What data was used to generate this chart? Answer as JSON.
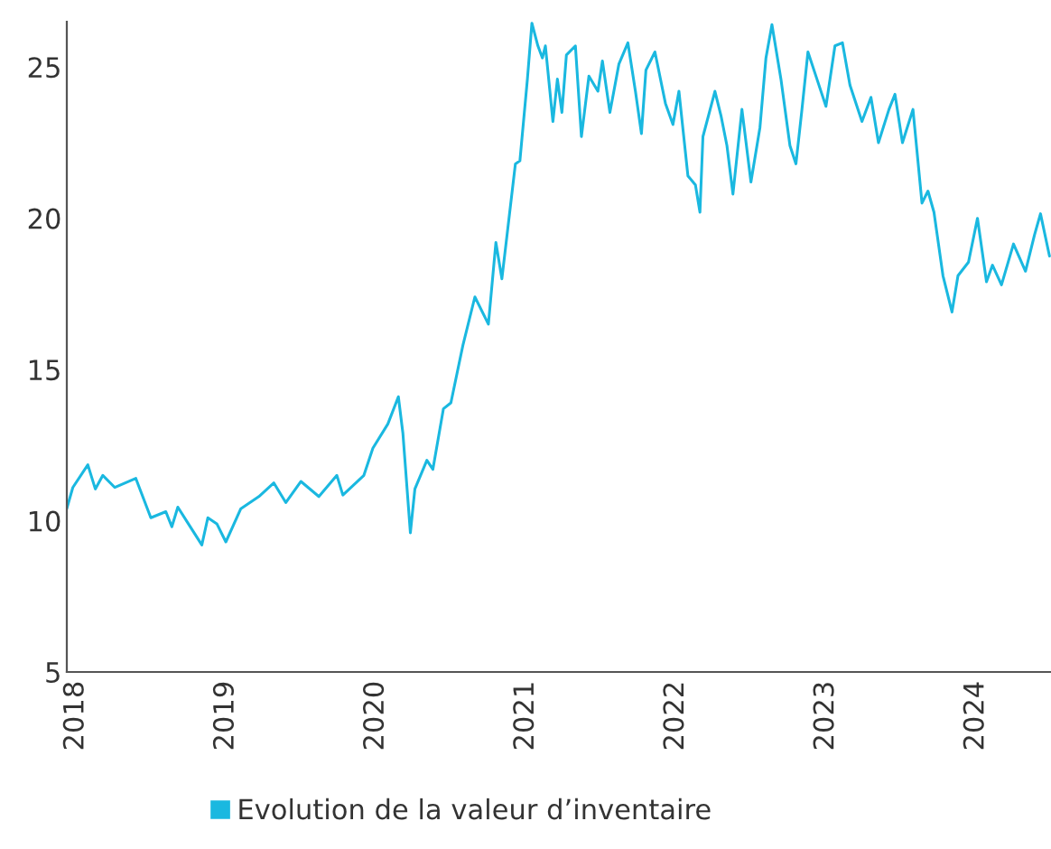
{
  "chart_data": {
    "type": "line",
    "xlim": [
      2017.94,
      2024.5
    ],
    "xticks": [
      2018,
      2019,
      2020,
      2021,
      2022,
      2023,
      2024
    ],
    "ylim": [
      5,
      26.5
    ],
    "yticks": [
      5,
      10,
      15,
      20,
      25
    ],
    "grid": false,
    "legend": "bottom",
    "series": [
      {
        "name": "Evolution de la valeur d’inventaire",
        "color": "#1ab8e0",
        "x": [
          2017.94,
          2017.98,
          2018.08,
          2018.13,
          2018.18,
          2018.26,
          2018.4,
          2018.5,
          2018.6,
          2018.64,
          2018.68,
          2018.75,
          2018.84,
          2018.88,
          2018.94,
          2019.0,
          2019.1,
          2019.22,
          2019.32,
          2019.4,
          2019.5,
          2019.62,
          2019.74,
          2019.78,
          2019.92,
          2019.98,
          2020.08,
          2020.15,
          2020.18,
          2020.23,
          2020.26,
          2020.34,
          2020.38,
          2020.45,
          2020.5,
          2020.58,
          2020.66,
          2020.75,
          2020.8,
          2020.84,
          2020.93,
          2020.96,
          2021.01,
          2021.04,
          2021.08,
          2021.11,
          2021.13,
          2021.18,
          2021.21,
          2021.24,
          2021.27,
          2021.33,
          2021.37,
          2021.42,
          2021.48,
          2021.51,
          2021.56,
          2021.62,
          2021.68,
          2021.73,
          2021.77,
          2021.8,
          2021.86,
          2021.93,
          2021.98,
          2022.02,
          2022.08,
          2022.13,
          2022.16,
          2022.18,
          2022.26,
          2022.3,
          2022.34,
          2022.38,
          2022.44,
          2022.5,
          2022.56,
          2022.6,
          2022.64,
          2022.7,
          2022.76,
          2022.8,
          2022.84,
          2022.88,
          2022.94,
          2023.0,
          2023.06,
          2023.11,
          2023.16,
          2023.24,
          2023.3,
          2023.35,
          2023.42,
          2023.46,
          2023.51,
          2023.58,
          2023.64,
          2023.68,
          2023.72,
          2023.78,
          2023.84,
          2023.88,
          2023.95,
          2024.01,
          2024.07,
          2024.11,
          2024.17,
          2024.25,
          2024.33,
          2024.39,
          2024.43,
          2024.49
        ],
        "values": [
          10.4,
          11.1,
          11.85,
          11.05,
          11.5,
          11.1,
          11.4,
          10.1,
          10.3,
          9.8,
          10.45,
          9.9,
          9.2,
          10.1,
          9.9,
          9.3,
          10.4,
          10.8,
          11.25,
          10.6,
          11.3,
          10.8,
          11.5,
          10.85,
          11.5,
          12.4,
          13.2,
          14.1,
          12.9,
          9.6,
          11.05,
          12.0,
          11.7,
          13.7,
          13.9,
          15.8,
          17.4,
          16.5,
          19.2,
          18.0,
          21.8,
          21.9,
          24.6,
          26.45,
          25.7,
          25.3,
          25.7,
          23.2,
          24.6,
          23.5,
          25.4,
          25.7,
          22.7,
          24.7,
          24.2,
          25.2,
          23.5,
          25.1,
          25.8,
          24.2,
          22.8,
          24.9,
          25.5,
          23.8,
          23.1,
          24.2,
          21.4,
          21.1,
          20.2,
          22.7,
          24.2,
          23.4,
          22.4,
          20.8,
          23.6,
          21.2,
          23.0,
          25.3,
          26.4,
          24.6,
          22.4,
          21.8,
          23.6,
          25.5,
          24.6,
          23.7,
          25.7,
          25.8,
          24.4,
          23.2,
          24.0,
          22.5,
          23.6,
          24.1,
          22.5,
          23.6,
          20.5,
          20.9,
          20.2,
          18.1,
          16.9,
          18.1,
          18.55,
          20.0,
          17.9,
          18.45,
          17.8,
          19.15,
          18.25,
          19.45,
          20.15,
          18.75
        ]
      }
    ]
  }
}
